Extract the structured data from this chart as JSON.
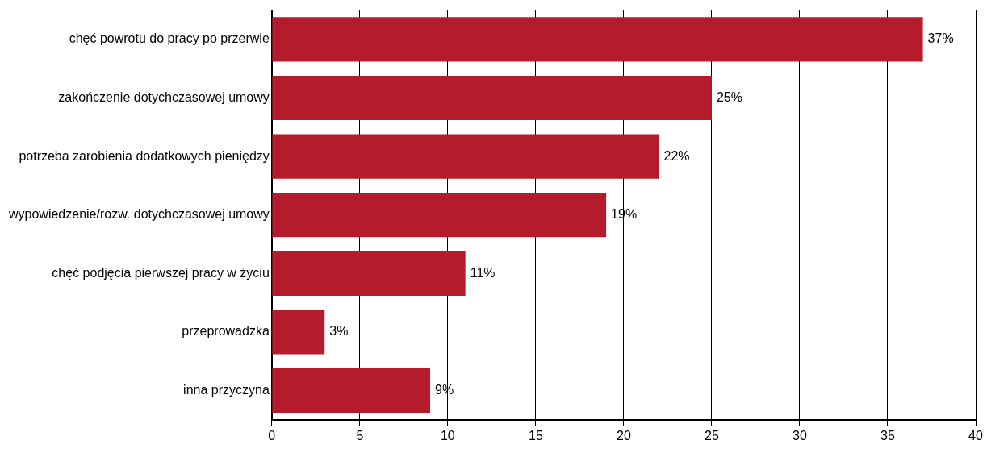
{
  "chart_data": {
    "type": "bar",
    "orientation": "horizontal",
    "categories": [
      "chęć powrotu do pracy po przerwie",
      "zakończenie dotychczasowej umowy",
      "potrzeba zarobienia dodatkowych pieniędzy",
      "wypowiedzenie/rozw. dotychczasowej umowy",
      "chęć podjęcia pierwszej pracy w życiu",
      "przeprowadzka",
      "inna przyczyna"
    ],
    "values": [
      37,
      25,
      22,
      19,
      11,
      3,
      9
    ],
    "value_labels": [
      "37%",
      "25%",
      "22%",
      "19%",
      "11%",
      "3%",
      "9%"
    ],
    "color": "#b51c2b",
    "xlim": [
      0,
      40
    ],
    "xticks": [
      0,
      5,
      10,
      15,
      20,
      25,
      30,
      35,
      40
    ],
    "grid": "x",
    "legend": false
  }
}
